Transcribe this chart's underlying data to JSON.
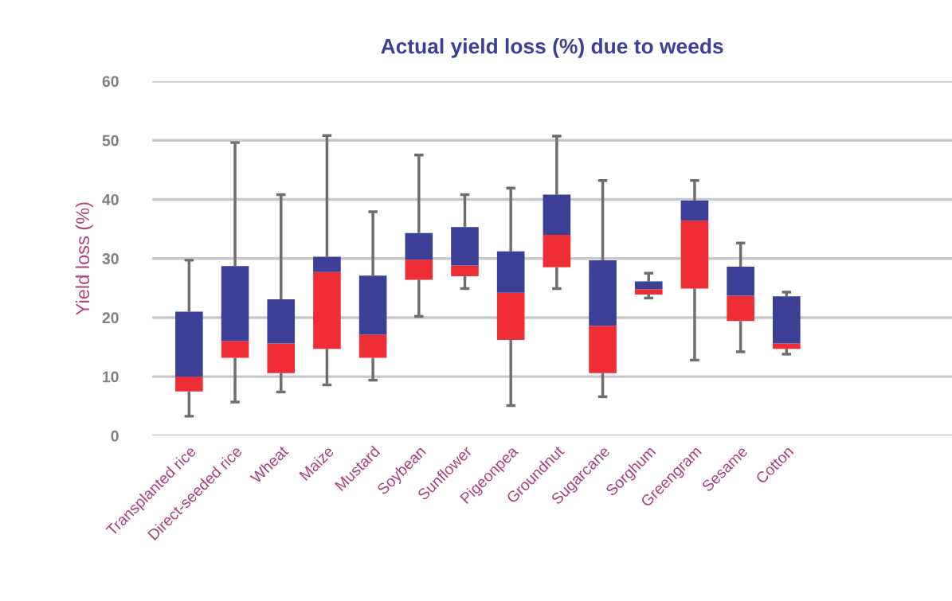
{
  "chart_data": {
    "type": "box",
    "title": "Actual yield loss (%) due to weeds",
    "ylabel": "Yield loss (%)",
    "categories": [
      "Transplanted rice",
      "Direct-seeded rice",
      "Wheat",
      "Maize",
      "Mustard",
      "Soybean",
      "Sunflower",
      "Pigeonpea",
      "Groundnut",
      "Sugarcane",
      "Sorghum",
      "Greengram",
      "Sesame",
      "Cotton"
    ],
    "series": [
      {
        "color": "#3b3f96",
        "colors": [
          "#ee2d34",
          "#ee2d34",
          "#ee2d34",
          "#ee2d34",
          "#ee2d34",
          "#ee2d34",
          "#ee2d34",
          "#ee2d34",
          "#ee2d34",
          "#ee2d34",
          "#ee2d34",
          "#ee2d34",
          "#ee2d34",
          "#ee2d34"
        ],
        "boxes": [
          {
            "low": 3.3,
            "q1": 7.5,
            "median": 10,
            "q3": 21,
            "high": 29.7
          },
          {
            "low": 5.7,
            "q1": 13.2,
            "median": 16,
            "q3": 28.7,
            "high": 49.6
          },
          {
            "low": 7.4,
            "q1": 10.6,
            "median": 15.6,
            "q3": 23.1,
            "high": 40.8
          },
          {
            "low": 8.6,
            "q1": 14.7,
            "median": 27.7,
            "q3": 30.3,
            "high": 50.8
          },
          {
            "low": 9.4,
            "q1": 13.2,
            "median": 17.1,
            "q3": 27.1,
            "high": 37.9
          },
          {
            "low": 20.2,
            "q1": 26.4,
            "median": 29.8,
            "q3": 34.3,
            "high": 47.5
          },
          {
            "low": 24.9,
            "q1": 27.0,
            "median": 28.8,
            "q3": 35.3,
            "high": 40.8
          },
          {
            "low": 5.1,
            "q1": 16.2,
            "median": 24.2,
            "q3": 31.2,
            "high": 41.9
          },
          {
            "low": 24.9,
            "q1": 28.5,
            "median": 34.0,
            "q3": 40.8,
            "high": 50.7
          },
          {
            "low": 6.6,
            "q1": 10.6,
            "median": 18.6,
            "q3": 29.7,
            "high": 43.2
          },
          {
            "low": 23.3,
            "q1": 23.9,
            "median": 24.8,
            "q3": 26.1,
            "high": 27.5
          },
          {
            "low": 12.8,
            "q1": 24.9,
            "median": 36.4,
            "q3": 39.8,
            "high": 43.2
          },
          {
            "low": 14.2,
            "q1": 19.4,
            "median": 23.7,
            "q3": 28.6,
            "high": 32.6
          },
          {
            "low": 13.8,
            "q1": 14.7,
            "median": 15.6,
            "q3": 23.6,
            "high": 24.3
          }
        ]
      }
    ],
    "ylim": [
      0,
      60
    ],
    "yticks": [
      0,
      10,
      20,
      30,
      40,
      50,
      60
    ],
    "grid": "y"
  }
}
